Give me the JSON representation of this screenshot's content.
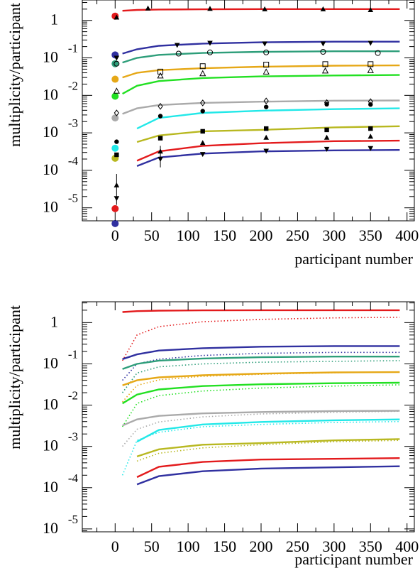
{
  "chart_data": [
    {
      "type": "line",
      "xlabel": "participant number",
      "ylabel": "multiplicity/participant",
      "x_ticks": [
        0,
        50,
        100,
        150,
        200,
        250,
        300,
        350,
        400
      ],
      "y_decades": [
        {
          "value": 1,
          "base": "1",
          "exp": ""
        },
        {
          "value": 0.1,
          "base": "10",
          "exp": "-1"
        },
        {
          "value": 0.01,
          "base": "10",
          "exp": "-2"
        },
        {
          "value": 0.001,
          "base": "10",
          "exp": "-3"
        },
        {
          "value": 0.0001,
          "base": "10",
          "exp": "-4"
        },
        {
          "value": 1e-05,
          "base": "10",
          "exp": "-5"
        }
      ],
      "xlim": [
        -45,
        410
      ],
      "ylim": [
        4.5e-06,
        3.5
      ],
      "yscale": "log",
      "x": [
        10,
        30,
        60,
        120,
        200,
        300,
        390
      ],
      "series": [
        {
          "color": "#e31a1c",
          "y": [
            1.8,
            1.9,
            1.95,
            1.98,
            2.0,
            2.0,
            2.0
          ]
        },
        {
          "color": "#3030a0",
          "y": [
            0.13,
            0.17,
            0.21,
            0.24,
            0.26,
            0.27,
            0.27
          ]
        },
        {
          "color": "#2e9e7a",
          "y": [
            0.075,
            0.1,
            0.12,
            0.135,
            0.145,
            0.15,
            0.15
          ]
        },
        {
          "color": "#e6a817",
          "y": [
            0.03,
            0.04,
            0.047,
            0.053,
            0.058,
            0.062,
            0.063
          ]
        },
        {
          "color": "#22e022",
          "y": [
            0.011,
            0.018,
            0.024,
            0.029,
            0.032,
            0.034,
            0.035
          ]
        },
        {
          "color": "#aaaaaa",
          "y": [
            0.0032,
            0.0045,
            0.0055,
            0.0063,
            0.0068,
            0.0072,
            0.0073
          ]
        },
        {
          "color": "#22e8e8",
          "y": [
            null,
            0.0013,
            0.0025,
            0.0034,
            0.0039,
            0.0043,
            0.0045
          ]
        },
        {
          "color": "#b8b820",
          "y": [
            null,
            0.00057,
            0.00085,
            0.0011,
            0.0012,
            0.0014,
            0.0015
          ]
        },
        {
          "color": "#e31a1c",
          "y": [
            null,
            0.00018,
            0.00032,
            0.00045,
            0.00053,
            0.0006,
            0.00062
          ]
        },
        {
          "color": "#3030a0",
          "y": [
            null,
            0.00013,
            0.00022,
            0.00028,
            0.00032,
            0.00034,
            0.00035
          ]
        }
      ],
      "points": [
        {
          "x": 0,
          "y": 1.3,
          "color": "#e31a1c",
          "marker": "filled-circle"
        },
        {
          "x": 0,
          "y": 0.12,
          "color": "#3030a0",
          "marker": "filled-circle"
        },
        {
          "x": 0,
          "y": 0.07,
          "color": "#2e9e7a",
          "marker": "filled-circle"
        },
        {
          "x": 0,
          "y": 0.027,
          "color": "#e6a817",
          "marker": "filled-circle"
        },
        {
          "x": 0,
          "y": 0.0095,
          "color": "#22e022",
          "marker": "filled-circle"
        },
        {
          "x": 0,
          "y": 0.0025,
          "color": "#aaaaaa",
          "marker": "filled-circle"
        },
        {
          "x": 0,
          "y": 0.00039,
          "color": "#22e8e8",
          "marker": "filled-circle"
        },
        {
          "x": 0,
          "y": 0.00021,
          "color": "#b8b820",
          "marker": "filled-circle"
        },
        {
          "x": 0,
          "y": 9.5e-06,
          "color": "#e31a1c",
          "marker": "filled-circle"
        },
        {
          "x": 0,
          "y": 3.8e-06,
          "color": "#3030a0",
          "marker": "filled-circle"
        },
        {
          "x": 2,
          "y": 1.2,
          "color": "#000000",
          "marker": "triangle-up"
        },
        {
          "x": 45,
          "y": 2.1,
          "color": "#000000",
          "marker": "triangle-up"
        },
        {
          "x": 130,
          "y": 2.05,
          "color": "#000000",
          "marker": "triangle-up"
        },
        {
          "x": 205,
          "y": 2.0,
          "color": "#000000",
          "marker": "triangle-up"
        },
        {
          "x": 285,
          "y": 2.0,
          "color": "#000000",
          "marker": "triangle-up"
        },
        {
          "x": 350,
          "y": 1.9,
          "color": "#000000",
          "marker": "triangle-up"
        },
        {
          "x": 85,
          "y": 0.22,
          "color": "#000000",
          "marker": "triangle-down"
        },
        {
          "x": 130,
          "y": 0.25,
          "color": "#000000",
          "marker": "triangle-down"
        },
        {
          "x": 205,
          "y": 0.24,
          "color": "#000000",
          "marker": "triangle-down"
        },
        {
          "x": 285,
          "y": 0.24,
          "color": "#000000",
          "marker": "triangle-down"
        },
        {
          "x": 350,
          "y": 0.25,
          "color": "#000000",
          "marker": "triangle-down"
        },
        {
          "x": 2,
          "y": 0.1,
          "color": "#000000",
          "marker": "triangle-down"
        },
        {
          "x": 87,
          "y": 0.13,
          "color": "#000000",
          "marker": "open-circle"
        },
        {
          "x": 130,
          "y": 0.14,
          "color": "#000000",
          "marker": "open-circle"
        },
        {
          "x": 207,
          "y": 0.14,
          "color": "#000000",
          "marker": "open-circle"
        },
        {
          "x": 285,
          "y": 0.145,
          "color": "#000000",
          "marker": "open-circle"
        },
        {
          "x": 360,
          "y": 0.135,
          "color": "#000000",
          "marker": "open-circle"
        },
        {
          "x": 2,
          "y": 0.07,
          "color": "#000000",
          "marker": "open-circle"
        },
        {
          "x": 62,
          "y": 0.043,
          "color": "#000000",
          "marker": "open-square"
        },
        {
          "x": 120,
          "y": 0.06,
          "color": "#000000",
          "marker": "open-square"
        },
        {
          "x": 207,
          "y": 0.066,
          "color": "#000000",
          "marker": "open-square"
        },
        {
          "x": 288,
          "y": 0.068,
          "color": "#000000",
          "marker": "open-square"
        },
        {
          "x": 350,
          "y": 0.068,
          "color": "#000000",
          "marker": "open-square"
        },
        {
          "x": 62,
          "y": 0.033,
          "color": "#000000",
          "marker": "open-triangle"
        },
        {
          "x": 120,
          "y": 0.038,
          "color": "#000000",
          "marker": "open-triangle"
        },
        {
          "x": 207,
          "y": 0.042,
          "color": "#000000",
          "marker": "open-triangle"
        },
        {
          "x": 288,
          "y": 0.045,
          "color": "#000000",
          "marker": "open-triangle"
        },
        {
          "x": 350,
          "y": 0.046,
          "color": "#000000",
          "marker": "open-triangle"
        },
        {
          "x": 2,
          "y": 0.013,
          "color": "#000000",
          "marker": "open-triangle"
        },
        {
          "x": 2,
          "y": 0.0034,
          "color": "#000000",
          "marker": "open-diamond"
        },
        {
          "x": 62,
          "y": 0.0051,
          "color": "#000000",
          "marker": "open-diamond"
        },
        {
          "x": 120,
          "y": 0.0063,
          "color": "#000000",
          "marker": "open-diamond"
        },
        {
          "x": 207,
          "y": 0.0071,
          "color": "#000000",
          "marker": "open-diamond"
        },
        {
          "x": 290,
          "y": 0.0064,
          "color": "#000000",
          "marker": "open-diamond"
        },
        {
          "x": 350,
          "y": 0.0068,
          "color": "#000000",
          "marker": "open-diamond"
        },
        {
          "x": 62,
          "y": 0.0028,
          "color": "#000000",
          "marker": "filled-circle"
        },
        {
          "x": 120,
          "y": 0.0038,
          "color": "#000000",
          "marker": "filled-circle"
        },
        {
          "x": 207,
          "y": 0.0049,
          "color": "#000000",
          "marker": "filled-circle"
        },
        {
          "x": 290,
          "y": 0.0058,
          "color": "#000000",
          "marker": "filled-circle"
        },
        {
          "x": 350,
          "y": 0.0057,
          "color": "#000000",
          "marker": "filled-circle"
        },
        {
          "x": 2,
          "y": 0.00058,
          "color": "#000000",
          "marker": "filled-circle"
        },
        {
          "x": 62,
          "y": 0.00072,
          "color": "#000000",
          "marker": "filled-square"
        },
        {
          "x": 120,
          "y": 0.0011,
          "color": "#000000",
          "marker": "filled-square"
        },
        {
          "x": 207,
          "y": 0.0013,
          "color": "#000000",
          "marker": "filled-square"
        },
        {
          "x": 290,
          "y": 0.0012,
          "color": "#000000",
          "marker": "filled-square"
        },
        {
          "x": 350,
          "y": 0.0013,
          "color": "#000000",
          "marker": "filled-square"
        },
        {
          "x": 2,
          "y": 0.00026,
          "color": "#000000",
          "marker": "filled-square"
        },
        {
          "x": 62,
          "y": 0.00032,
          "color": "#000000",
          "marker": "triangle-up"
        },
        {
          "x": 120,
          "y": 0.00054,
          "color": "#000000",
          "marker": "triangle-up"
        },
        {
          "x": 207,
          "y": 0.00075,
          "color": "#000000",
          "marker": "triangle-up"
        },
        {
          "x": 290,
          "y": 0.00075,
          "color": "#000000",
          "marker": "triangle-up"
        },
        {
          "x": 350,
          "y": 0.0008,
          "color": "#000000",
          "marker": "triangle-up"
        },
        {
          "x": 2,
          "y": 4e-05,
          "color": "#000000",
          "marker": "triangle-up"
        },
        {
          "x": 62,
          "y": 0.0002,
          "color": "#000000",
          "marker": "triangle-down"
        },
        {
          "x": 120,
          "y": 0.00027,
          "color": "#000000",
          "marker": "triangle-down"
        },
        {
          "x": 207,
          "y": 0.00033,
          "color": "#000000",
          "marker": "triangle-down"
        },
        {
          "x": 290,
          "y": 0.00037,
          "color": "#000000",
          "marker": "triangle-down"
        },
        {
          "x": 350,
          "y": 0.00039,
          "color": "#000000",
          "marker": "triangle-down"
        },
        {
          "x": 2,
          "y": 1.8e-05,
          "color": "#000000",
          "marker": "triangle-down"
        }
      ]
    },
    {
      "type": "line",
      "xlabel": "participant number",
      "ylabel": "multiplicity/participant",
      "x_ticks": [
        0,
        50,
        100,
        150,
        200,
        250,
        300,
        350,
        400
      ],
      "y_decades": [
        {
          "value": 1,
          "base": "1",
          "exp": ""
        },
        {
          "value": 0.1,
          "base": "10",
          "exp": "-1"
        },
        {
          "value": 0.01,
          "base": "10",
          "exp": "-2"
        },
        {
          "value": 0.001,
          "base": "10",
          "exp": "-3"
        },
        {
          "value": 0.0001,
          "base": "10",
          "exp": "-4"
        },
        {
          "value": 1e-05,
          "base": "10",
          "exp": "-5"
        }
      ],
      "xlim": [
        -45,
        410
      ],
      "ylim": [
        8.5e-06,
        3.2
      ],
      "yscale": "log",
      "x": [
        10,
        30,
        60,
        120,
        200,
        300,
        390
      ],
      "series": [
        {
          "color": "#e31a1c",
          "style": "solid",
          "y": [
            1.8,
            1.9,
            1.95,
            1.98,
            2.0,
            2.0,
            2.0
          ]
        },
        {
          "color": "#e31a1c",
          "style": "dotted",
          "y": [
            0.12,
            0.5,
            0.8,
            1.05,
            1.2,
            1.3,
            1.35
          ]
        },
        {
          "color": "#3030a0",
          "style": "solid",
          "y": [
            0.13,
            0.17,
            0.21,
            0.24,
            0.26,
            0.27,
            0.27
          ]
        },
        {
          "color": "#3030a0",
          "style": "dotted",
          "y": [
            0.04,
            0.1,
            0.13,
            0.16,
            0.18,
            0.19,
            0.19
          ]
        },
        {
          "color": "#2e9e7a",
          "style": "solid",
          "y": [
            0.075,
            0.1,
            0.12,
            0.135,
            0.145,
            0.15,
            0.15
          ]
        },
        {
          "color": "#2e9e7a",
          "style": "dotted",
          "y": [
            0.02,
            0.06,
            0.085,
            0.1,
            0.11,
            0.115,
            0.12
          ]
        },
        {
          "color": "#e6a817",
          "style": "solid",
          "y": [
            0.03,
            0.04,
            0.047,
            0.053,
            0.058,
            0.062,
            0.063
          ]
        },
        {
          "color": "#e6a817",
          "style": "dotted",
          "y": [
            0.012,
            0.03,
            0.041,
            0.05,
            0.056,
            0.061,
            0.064
          ]
        },
        {
          "color": "#22e022",
          "style": "solid",
          "y": [
            0.011,
            0.018,
            0.024,
            0.029,
            0.032,
            0.034,
            0.035
          ]
        },
        {
          "color": "#22e022",
          "style": "dotted",
          "y": [
            0.003,
            0.011,
            0.017,
            0.022,
            0.026,
            0.029,
            0.031
          ]
        },
        {
          "color": "#aaaaaa",
          "style": "solid",
          "y": [
            0.0032,
            0.0045,
            0.0055,
            0.0063,
            0.0068,
            0.0072,
            0.0073
          ]
        },
        {
          "color": "#aaaaaa",
          "style": "dotted",
          "y": [
            0.001,
            0.0026,
            0.0039,
            0.0052,
            0.0061,
            0.0067,
            0.0071
          ]
        },
        {
          "color": "#22e8e8",
          "style": "solid",
          "y": [
            null,
            0.0013,
            0.0025,
            0.0034,
            0.0039,
            0.0043,
            0.0045
          ]
        },
        {
          "color": "#22e8e8",
          "style": "dotted",
          "y": [
            0.0002,
            0.0014,
            0.0022,
            0.003,
            0.0034,
            0.0038,
            0.004
          ]
        },
        {
          "color": "#b8b820",
          "style": "solid",
          "y": [
            null,
            0.00057,
            0.00085,
            0.0011,
            0.0012,
            0.0014,
            0.0015
          ]
        },
        {
          "color": "#b8b820",
          "style": "dotted",
          "y": [
            null,
            0.00044,
            0.00068,
            0.00092,
            0.0011,
            0.0013,
            0.0014
          ]
        },
        {
          "color": "#e31a1c",
          "style": "solid",
          "y": [
            null,
            0.00018,
            0.00032,
            0.00042,
            0.00048,
            0.0005,
            0.00052
          ]
        },
        {
          "color": "#3030a0",
          "style": "solid",
          "y": [
            null,
            0.00012,
            0.00019,
            0.00025,
            0.00029,
            0.00031,
            0.00033
          ]
        }
      ]
    }
  ]
}
